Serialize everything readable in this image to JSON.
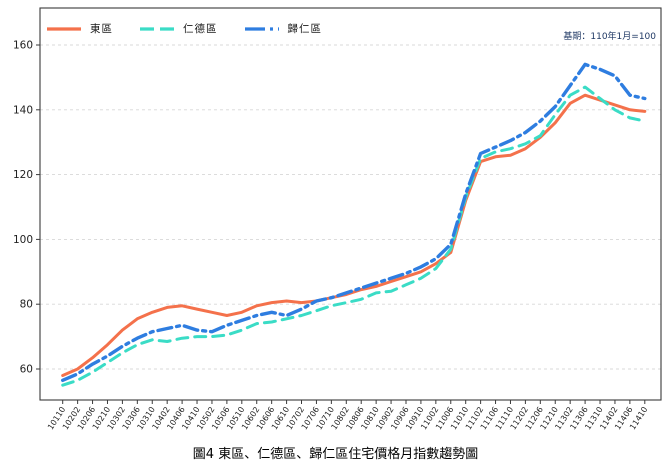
{
  "figure": {
    "base_note": "基期：110年1月=100",
    "caption": "圖4 東區、仁德區、歸仁區住宅價格月指數趨勢圖"
  },
  "chart_data": {
    "type": "line",
    "title": "",
    "xlabel": "",
    "ylabel": "",
    "ylim": [
      50,
      171
    ],
    "yticks": [
      60,
      80,
      100,
      120,
      140,
      160
    ],
    "grid": "horizontal-dashed",
    "legend_position": "top-left-inside",
    "categories": [
      "10110",
      "10202",
      "10206",
      "10210",
      "10302",
      "10306",
      "10310",
      "10402",
      "10406",
      "10410",
      "10502",
      "10506",
      "10510",
      "10602",
      "10606",
      "10610",
      "10702",
      "10706",
      "10710",
      "10802",
      "10806",
      "10810",
      "10902",
      "10906",
      "10910",
      "11002",
      "11006",
      "11010",
      "11102",
      "11106",
      "11110",
      "11202",
      "11206",
      "11210",
      "11302",
      "11306",
      "11310",
      "11402",
      "11406",
      "11410"
    ],
    "series": [
      {
        "name": "東區",
        "slug": "east-district",
        "color": "#F4714B",
        "dash": "solid",
        "width": 3,
        "values": [
          58,
          60,
          63.5,
          67.5,
          72,
          75.5,
          77.5,
          79,
          79.5,
          78.5,
          77.5,
          76.5,
          77.5,
          79.5,
          80.5,
          81,
          80.5,
          81,
          82,
          83,
          84.5,
          85.5,
          87,
          88.5,
          90,
          92.5,
          96,
          112,
          124,
          125.5,
          126,
          128,
          131.5,
          136,
          142,
          144.5,
          143,
          141.5,
          140,
          139.5
        ]
      },
      {
        "name": "仁德區",
        "slug": "rende-district",
        "color": "#3ADCC6",
        "dash": "dashed",
        "width": 3,
        "values": [
          55,
          56.5,
          59,
          62,
          65,
          67.5,
          69,
          68.5,
          69.5,
          70,
          70,
          70.5,
          72,
          74,
          74.5,
          75.5,
          76.5,
          78,
          79.5,
          80.5,
          81.5,
          83.5,
          84,
          86,
          88,
          91,
          97,
          113,
          125,
          127,
          128,
          129.5,
          132,
          138.5,
          144.5,
          147,
          143.5,
          140,
          137.5,
          136.5
        ]
      },
      {
        "name": "歸仁區",
        "slug": "guiren-district",
        "color": "#2E7DE0",
        "dash": "dashdot",
        "width": 3.4,
        "values": [
          56.5,
          58.5,
          61.5,
          64,
          67,
          69.5,
          71.5,
          72.5,
          73.5,
          72,
          71.5,
          73.5,
          75,
          76.5,
          77.5,
          76.5,
          78.5,
          81,
          82,
          83.5,
          85,
          86.5,
          88,
          89.5,
          91.5,
          94,
          98.5,
          114,
          126.5,
          128.5,
          130.5,
          133,
          136.5,
          141,
          147.5,
          154,
          152.5,
          150.5,
          144.5,
          143.5
        ]
      }
    ]
  },
  "colors": {
    "grid": "#d8d8d8",
    "axis": "#3a3a3a",
    "tick_label": "#222222",
    "note": "#1F3864"
  }
}
